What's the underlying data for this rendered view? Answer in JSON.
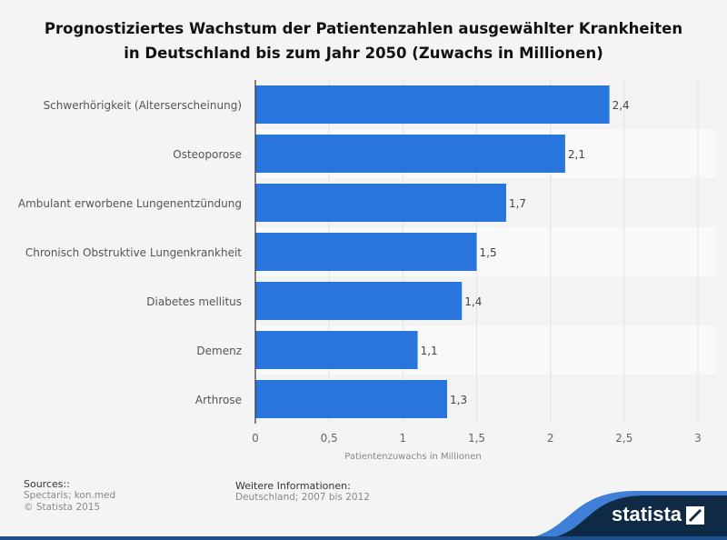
{
  "title_line1": "Prognostiziertes Wachstum der Patientenzahlen ausgewählter Krankheiten",
  "title_line2": "in Deutschland bis zum Jahr 2050 (Zuwachs in Millionen)",
  "chart_data": {
    "type": "bar",
    "orientation": "horizontal",
    "title": "Prognostiziertes Wachstum der Patientenzahlen ausgewählter Krankheiten in Deutschland bis zum Jahr 2050 (Zuwachs in Millionen)",
    "categories": [
      "Schwerhörigkeit (Alterserscheinung)",
      "Osteoporose",
      "Ambulant erworbene Lungenentzündung",
      "Chronisch Obstruktive Lungenkrankheit",
      "Diabetes mellitus",
      "Demenz",
      "Arthrose"
    ],
    "values": [
      2.4,
      2.1,
      1.7,
      1.5,
      1.4,
      1.1,
      1.3
    ],
    "data_labels": [
      "2,4",
      "2,1",
      "1,7",
      "1,5",
      "1,4",
      "1,1",
      "1,3"
    ],
    "xlabel": "Patientenzuwachs in Millionen",
    "ylabel": "",
    "xlim": [
      0,
      3
    ],
    "xticks": [
      0,
      0.5,
      1,
      1.5,
      2,
      2.5,
      3
    ],
    "xtick_labels": [
      "0",
      "0,5",
      "1",
      "1,5",
      "2",
      "2,5",
      "3"
    ],
    "grid": true,
    "bar_color": "#2876dd"
  },
  "footer": {
    "sources_heading": "Sources::",
    "sources": "Spectaris; kon.med",
    "copyright": "© Statista 2015",
    "info_heading": "Weitere Informationen:",
    "info": "Deutschland; 2007 bis 2012"
  },
  "logo_text": "statista"
}
